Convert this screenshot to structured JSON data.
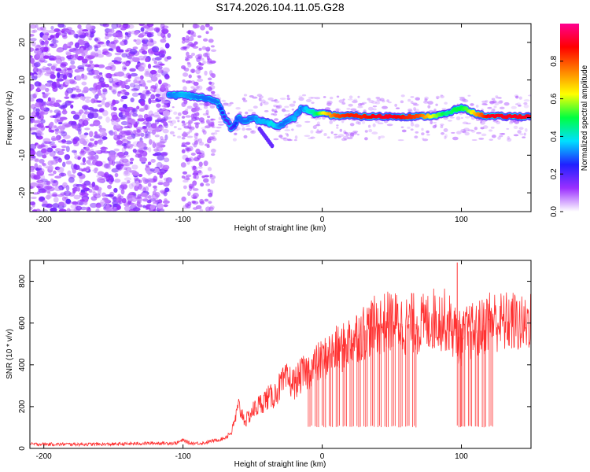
{
  "title": "S174.2026.104.11.05.G28",
  "chart_data": [
    {
      "type": "heatmap",
      "name": "spectrogram",
      "xlabel": "Height of straight line (km)",
      "ylabel": "Frequency (Hz)",
      "xlim": [
        -210,
        150
      ],
      "ylim": [
        -25,
        25
      ],
      "xticks": [
        -200,
        -100,
        0,
        100
      ],
      "yticks": [
        -20,
        -10,
        0,
        10,
        20
      ],
      "ridge": {
        "x": [
          -110,
          -100,
          -90,
          -82,
          -75,
          -70,
          -65,
          -60,
          -55,
          -50,
          -45,
          -40,
          -35,
          -30,
          -25,
          -20,
          -15,
          -10,
          -5,
          0,
          10,
          20,
          30,
          40,
          50,
          60,
          70,
          80,
          90,
          95,
          100,
          105,
          110,
          120,
          130,
          140,
          150
        ],
        "freq": [
          6,
          6,
          5.5,
          5,
          4,
          0,
          -3,
          0,
          -1,
          0,
          -1,
          -1,
          -2,
          -2,
          -1,
          0,
          2.5,
          2,
          1,
          1,
          0.5,
          0.5,
          0.3,
          0.3,
          0.3,
          0.3,
          0.3,
          0.5,
          1,
          2,
          2.5,
          2,
          1,
          0.3,
          0.3,
          0.3,
          0.3
        ],
        "amplitude": [
          0.3,
          0.35,
          0.3,
          0.3,
          0.3,
          0.2,
          0.2,
          0.3,
          0.3,
          0.3,
          0.35,
          0.35,
          0.4,
          0.3,
          0.3,
          0.35,
          0.3,
          0.4,
          0.45,
          0.6,
          0.8,
          0.85,
          0.85,
          0.9,
          0.9,
          0.85,
          0.8,
          0.6,
          0.45,
          0.5,
          0.5,
          0.55,
          0.7,
          0.9,
          0.9,
          0.9,
          0.9
        ]
      },
      "colorbar": {
        "label": "Normalized spectral amplitude",
        "range": [
          0,
          1
        ],
        "ticks": [
          "0.0",
          "0.2",
          "0.4",
          "0.6",
          "0.8"
        ],
        "colors": [
          "#ffffff",
          "#9b30ff",
          "#2020ff",
          "#00e0ff",
          "#00ff40",
          "#ffff00",
          "#ff8000",
          "#ff0000",
          "#ff0090"
        ]
      }
    },
    {
      "type": "line",
      "name": "snr",
      "xlabel": "Height of straight line (km)",
      "ylabel": "SNR (10 * v/v)",
      "xlim": [
        -210,
        150
      ],
      "ylim": [
        0,
        900
      ],
      "xticks": [
        -200,
        -100,
        0,
        100
      ],
      "yticks": [
        0,
        200,
        400,
        600,
        800
      ],
      "color": "#ff3030",
      "series": [
        {
          "name": "SNR",
          "x": [
            -210,
            -180,
            -150,
            -120,
            -105,
            -100,
            -95,
            -90,
            -85,
            -80,
            -75,
            -70,
            -65,
            -60,
            -55,
            -50,
            -45,
            -40,
            -35,
            -30,
            -25,
            -20,
            -15,
            -10,
            -5,
            0,
            5,
            10,
            15,
            20,
            25,
            30,
            35,
            40,
            45,
            50,
            55,
            60,
            65,
            70,
            75,
            80,
            85,
            90,
            95,
            100,
            105,
            110,
            115,
            120,
            125,
            130,
            135,
            140,
            145,
            150
          ],
          "y": [
            20,
            20,
            20,
            25,
            25,
            40,
            25,
            25,
            25,
            35,
            40,
            50,
            80,
            200,
            130,
            180,
            210,
            240,
            250,
            300,
            330,
            310,
            350,
            370,
            400,
            420,
            450,
            470,
            480,
            520,
            540,
            560,
            580,
            590,
            600,
            610,
            600,
            590,
            600,
            590,
            600,
            620,
            620,
            610,
            560,
            520,
            560,
            560,
            580,
            620,
            610,
            600,
            610,
            600,
            580,
            640
          ]
        }
      ],
      "dropouts_x": [
        -10,
        -5,
        0,
        5,
        10,
        15,
        20,
        25,
        30,
        35,
        40,
        45,
        50,
        55,
        60,
        65,
        97,
        100,
        105,
        110,
        115,
        120
      ],
      "dropout_floor": 100,
      "peak": {
        "x": 97,
        "y": 890
      }
    }
  ]
}
